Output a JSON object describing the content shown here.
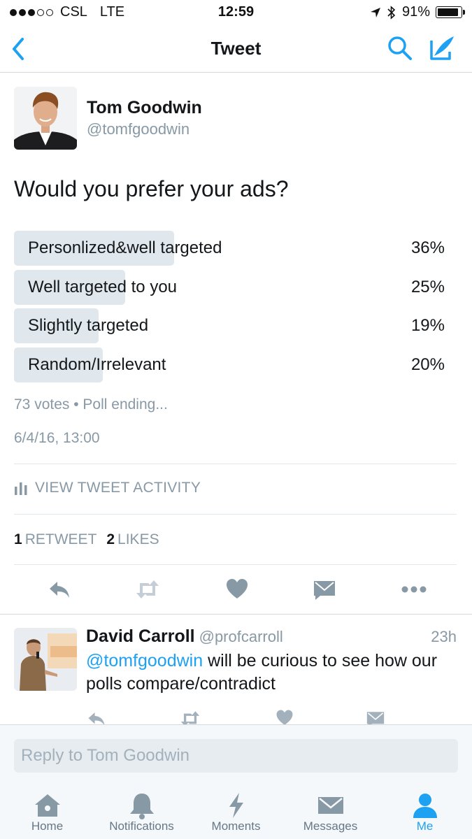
{
  "status_bar": {
    "carrier": "CSL",
    "network": "LTE",
    "time": "12:59",
    "battery": "91%",
    "battery_level": 0.91
  },
  "nav": {
    "title": "Tweet"
  },
  "tweet": {
    "author_name": "Tom Goodwin",
    "author_handle": "@tomfgoodwin",
    "text": "Would you prefer your ads?",
    "poll": [
      {
        "label": "Personlized&well targeted",
        "percent": "36%",
        "value": 36
      },
      {
        "label": "Well targeted to you",
        "percent": "25%",
        "value": 25
      },
      {
        "label": "Slightly targeted",
        "percent": "19%",
        "value": 19
      },
      {
        "label": "Random/Irrelevant",
        "percent": "20%",
        "value": 20
      }
    ],
    "poll_meta": "73 votes • Poll ending...",
    "timestamp": "6/4/16, 13:00",
    "activity_label": "VIEW TWEET ACTIVITY",
    "retweet_count": "1",
    "retweet_label": "RETWEET",
    "like_count": "2",
    "like_label": "LIKES"
  },
  "reply": {
    "author_name": "David Carroll",
    "author_handle": "@profcarroll",
    "time": "23h",
    "mention": "@tomfgoodwin",
    "text": " will be curious to see how our polls compare/contradict"
  },
  "reply_bar": {
    "placeholder": "Reply to Tom Goodwin"
  },
  "tabs": [
    {
      "label": "Home"
    },
    {
      "label": "Notifications"
    },
    {
      "label": "Moments"
    },
    {
      "label": "Messages"
    },
    {
      "label": "Me"
    }
  ],
  "colors": {
    "accent": "#1da1f2",
    "icon_gray": "#8899a6",
    "poll_bar": "#e1e8ed"
  }
}
